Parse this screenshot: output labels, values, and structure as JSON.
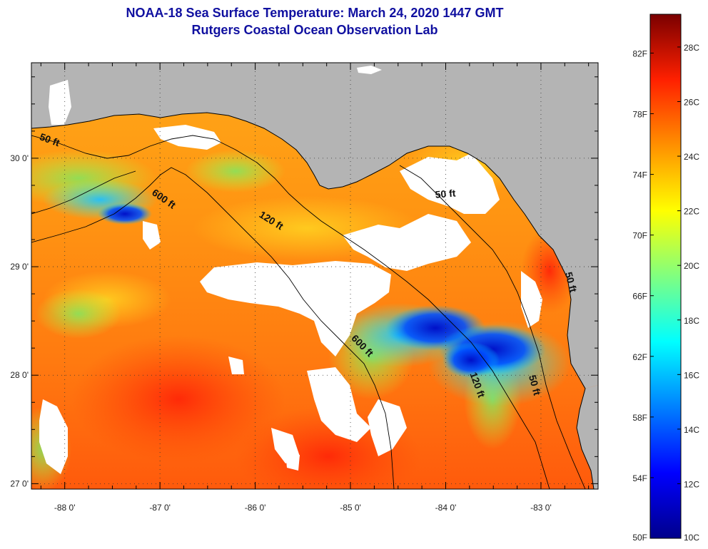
{
  "header": {
    "title": "NOAA-18 Sea Surface Temperature:  March 24, 2020 1447 GMT",
    "subtitle": "Rutgers Coastal Ocean Observation Lab"
  },
  "chart_data": {
    "type": "heatmap",
    "title": "NOAA-18 Sea Surface Temperature:  March 24, 2020 1447 GMT",
    "subtitle": "Rutgers Coastal Ocean Observation Lab",
    "x_axis": {
      "ticks": [
        -88,
        -87,
        -86,
        -85,
        -84,
        -83
      ],
      "tick_labels": [
        "-88 0'",
        "-87 0'",
        "-86 0'",
        "-85 0'",
        "-84 0'",
        "-83 0'"
      ],
      "range": [
        -88.35,
        -82.4
      ]
    },
    "y_axis": {
      "ticks": [
        27,
        28,
        29,
        30
      ],
      "tick_labels": [
        "27 0'",
        "28 0'",
        "29 0'",
        "30 0'"
      ],
      "range": [
        26.95,
        30.88
      ]
    },
    "contour_labels": [
      {
        "text": "50 ft",
        "lon": -88.17,
        "lat": 30.14,
        "angle": 20
      },
      {
        "text": "600 ft",
        "lon": -86.98,
        "lat": 29.6,
        "angle": 35
      },
      {
        "text": "120 ft",
        "lon": -85.85,
        "lat": 29.4,
        "angle": 32
      },
      {
        "text": "50 ft",
        "lon": -84.0,
        "lat": 29.64,
        "angle": -5
      },
      {
        "text": "600 ft",
        "lon": -84.9,
        "lat": 28.25,
        "angle": 45
      },
      {
        "text": "120 ft",
        "lon": -83.7,
        "lat": 27.9,
        "angle": 70
      },
      {
        "text": "50 ft",
        "lon": -83.1,
        "lat": 27.9,
        "angle": 75
      },
      {
        "text": "50 ft",
        "lon": -82.72,
        "lat": 28.85,
        "angle": 75
      }
    ],
    "colorbar": {
      "celsius_labels": [
        "28C",
        "26C",
        "24C",
        "22C",
        "20C",
        "18C",
        "16C",
        "14C",
        "12C",
        "10C"
      ],
      "celsius_values": [
        28,
        26,
        24,
        22,
        20,
        18,
        16,
        14,
        12,
        10
      ],
      "fahrenheit_labels": [
        "82F",
        "78F",
        "74F",
        "70F",
        "66F",
        "62F",
        "58F",
        "54F",
        "50F"
      ],
      "fahrenheit_values": [
        82,
        78,
        74,
        70,
        66,
        62,
        58,
        54,
        50
      ],
      "range_c": [
        10,
        29.2
      ],
      "colors": [
        "#00008b",
        "#0000ff",
        "#0080ff",
        "#00ffff",
        "#80ff80",
        "#ffff00",
        "#ff9000",
        "#ff2000",
        "#7a0000"
      ]
    },
    "legend": "right",
    "grid": true,
    "colors": {
      "land": "#b4b4b4",
      "cloud": "#ffffff",
      "warm_ocean": "#ff8c10",
      "cold_ocean": "#0030e0"
    }
  }
}
